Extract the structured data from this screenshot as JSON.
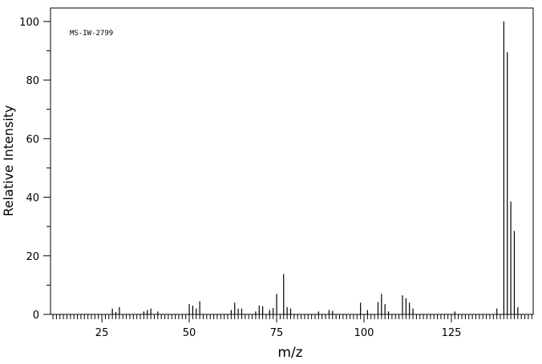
{
  "chart_data": {
    "type": "stem",
    "label": "MS-IW-2799",
    "xlabel": "m/z",
    "ylabel": "Relative Intensity",
    "x": [
      28,
      29,
      30,
      37,
      38,
      39,
      41,
      50,
      51,
      52,
      53,
      62,
      63,
      64,
      65,
      69,
      70,
      71,
      73,
      74,
      75,
      77,
      78,
      79,
      87,
      90,
      91,
      99,
      101,
      104,
      105,
      106,
      107,
      111,
      112,
      113,
      114,
      126,
      138,
      140,
      141,
      142,
      143,
      144
    ],
    "values": [
      2,
      0.8,
      2.5,
      1,
      1.5,
      2,
      1,
      3.5,
      3,
      2,
      4.5,
      1.5,
      4,
      2,
      2,
      1,
      3,
      2.8,
      1.5,
      2.2,
      7,
      13.8,
      2.5,
      2,
      1,
      1.5,
      1.2,
      4,
      1.5,
      4.2,
      7,
      3.5,
      1,
      6.5,
      5.5,
      4,
      2,
      1,
      2,
      100,
      89.5,
      38.5,
      28.5,
      2.5
    ],
    "color": "#000000",
    "xlim": [
      10.3,
      148.4
    ],
    "ylim": [
      0,
      104.6
    ],
    "xticks": [
      25,
      50,
      75,
      100,
      125
    ],
    "xticks_minor": [
      11,
      12,
      13,
      14,
      15,
      16,
      17,
      18,
      19,
      20,
      21,
      22,
      23,
      24,
      26,
      27,
      28,
      29,
      30,
      31,
      32,
      33,
      34,
      35,
      36,
      37,
      38,
      39,
      40,
      41,
      42,
      43,
      44,
      45,
      46,
      47,
      48,
      49,
      51,
      52,
      53,
      54,
      55,
      56,
      57,
      58,
      59,
      60,
      61,
      62,
      63,
      64,
      65,
      66,
      67,
      68,
      69,
      70,
      71,
      72,
      73,
      74,
      76,
      77,
      78,
      79,
      80,
      81,
      82,
      83,
      84,
      85,
      86,
      87,
      88,
      89,
      90,
      91,
      92,
      93,
      94,
      95,
      96,
      97,
      98,
      99,
      101,
      102,
      103,
      104,
      105,
      106,
      107,
      108,
      109,
      110,
      111,
      112,
      113,
      114,
      115,
      116,
      117,
      118,
      119,
      120,
      121,
      122,
      123,
      124,
      126,
      127,
      128,
      129,
      130,
      131,
      132,
      133,
      134,
      135,
      136,
      137,
      138,
      139,
      140,
      141,
      142,
      143,
      144,
      145,
      146,
      147,
      148
    ],
    "yticks": [
      0,
      20,
      40,
      60,
      80,
      100
    ],
    "yticks_minor": [
      10,
      30,
      50,
      70,
      90
    ]
  }
}
